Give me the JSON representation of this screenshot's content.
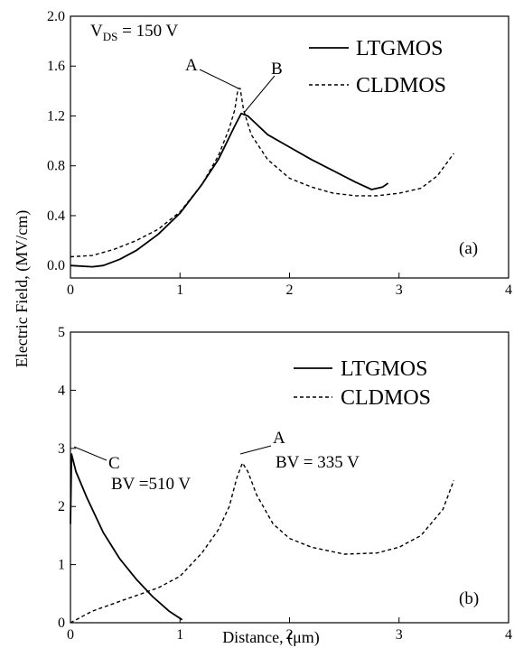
{
  "ylabel": "Electric Field, (MV/cm)",
  "xlabel": "Distance, (μm)",
  "chart_data": [
    {
      "type": "line",
      "panel_label": "(a)",
      "xlim": [
        0,
        4
      ],
      "ylim": [
        -0.1,
        2.0
      ],
      "x_ticks": [
        "0",
        "1",
        "2",
        "3",
        "4"
      ],
      "y_ticks": [
        "0.0",
        "0.4",
        "0.8",
        "1.2",
        "1.6",
        "2.0"
      ],
      "grid": false,
      "legend_position": "top-right",
      "vds_label": {
        "main": "V",
        "sub": "DS",
        "rest": " = 150 V"
      },
      "series": [
        {
          "name": "LTGMOS",
          "style": "solid",
          "color": "#000000",
          "points": [
            [
              0,
              0.0
            ],
            [
              0.2,
              -0.01
            ],
            [
              0.3,
              0.0
            ],
            [
              0.45,
              0.05
            ],
            [
              0.6,
              0.12
            ],
            [
              0.8,
              0.25
            ],
            [
              1.0,
              0.42
            ],
            [
              1.2,
              0.65
            ],
            [
              1.35,
              0.85
            ],
            [
              1.5,
              1.12
            ],
            [
              1.56,
              1.22
            ],
            [
              1.62,
              1.2
            ],
            [
              1.8,
              1.05
            ],
            [
              2.0,
              0.95
            ],
            [
              2.2,
              0.85
            ],
            [
              2.4,
              0.76
            ],
            [
              2.6,
              0.67
            ],
            [
              2.75,
              0.61
            ],
            [
              2.85,
              0.63
            ],
            [
              2.9,
              0.66
            ]
          ]
        },
        {
          "name": "CLDMOS",
          "style": "dashed",
          "color": "#000000",
          "points": [
            [
              0,
              0.07
            ],
            [
              0.2,
              0.08
            ],
            [
              0.4,
              0.13
            ],
            [
              0.6,
              0.2
            ],
            [
              0.8,
              0.29
            ],
            [
              1.0,
              0.43
            ],
            [
              1.2,
              0.65
            ],
            [
              1.35,
              0.88
            ],
            [
              1.45,
              1.1
            ],
            [
              1.5,
              1.25
            ],
            [
              1.53,
              1.42
            ],
            [
              1.55,
              1.42
            ],
            [
              1.58,
              1.25
            ],
            [
              1.65,
              1.05
            ],
            [
              1.8,
              0.85
            ],
            [
              2.0,
              0.7
            ],
            [
              2.2,
              0.63
            ],
            [
              2.4,
              0.58
            ],
            [
              2.6,
              0.56
            ],
            [
              2.8,
              0.56
            ],
            [
              3.0,
              0.58
            ],
            [
              3.2,
              0.62
            ],
            [
              3.35,
              0.72
            ],
            [
              3.5,
              0.9
            ]
          ]
        }
      ],
      "annotations": [
        {
          "text": "A",
          "x": 1.53,
          "y": 1.42
        },
        {
          "text": "B",
          "x": 1.57,
          "y": 1.22
        }
      ]
    },
    {
      "type": "line",
      "panel_label": "(b)",
      "xlim": [
        0,
        4
      ],
      "ylim": [
        0,
        5
      ],
      "x_ticks": [
        "0",
        "1",
        "2",
        "3",
        "4"
      ],
      "y_ticks": [
        "0",
        "1",
        "2",
        "3",
        "4",
        "5"
      ],
      "grid": false,
      "legend_position": "top-right",
      "series": [
        {
          "name": "LTGMOS",
          "style": "solid",
          "color": "#000000",
          "points": [
            [
              0,
              1.7
            ],
            [
              0.01,
              2.9
            ],
            [
              0.05,
              2.6
            ],
            [
              0.15,
              2.15
            ],
            [
              0.3,
              1.55
            ],
            [
              0.45,
              1.1
            ],
            [
              0.6,
              0.75
            ],
            [
              0.75,
              0.45
            ],
            [
              0.9,
              0.2
            ],
            [
              1.02,
              0.05
            ]
          ]
        },
        {
          "name": "CLDMOS",
          "style": "dashed",
          "color": "#000000",
          "points": [
            [
              0,
              0.0
            ],
            [
              0.2,
              0.2
            ],
            [
              0.5,
              0.4
            ],
            [
              0.8,
              0.6
            ],
            [
              1.0,
              0.8
            ],
            [
              1.2,
              1.2
            ],
            [
              1.35,
              1.6
            ],
            [
              1.45,
              2.0
            ],
            [
              1.52,
              2.5
            ],
            [
              1.57,
              2.75
            ],
            [
              1.62,
              2.6
            ],
            [
              1.7,
              2.2
            ],
            [
              1.85,
              1.7
            ],
            [
              2.0,
              1.45
            ],
            [
              2.2,
              1.3
            ],
            [
              2.5,
              1.18
            ],
            [
              2.8,
              1.2
            ],
            [
              3.0,
              1.3
            ],
            [
              3.2,
              1.5
            ],
            [
              3.4,
              1.95
            ],
            [
              3.5,
              2.45
            ]
          ]
        }
      ],
      "annotations": [
        {
          "text": "A",
          "x": 1.57,
          "y": 2.75
        },
        {
          "text": "C",
          "x": 0.0,
          "y": 2.9
        },
        {
          "text": "BV = 335 V",
          "x": 1.6,
          "y": 2.3
        },
        {
          "text": "BV =510 V",
          "x": 0.35,
          "y": 2.3
        }
      ]
    }
  ]
}
